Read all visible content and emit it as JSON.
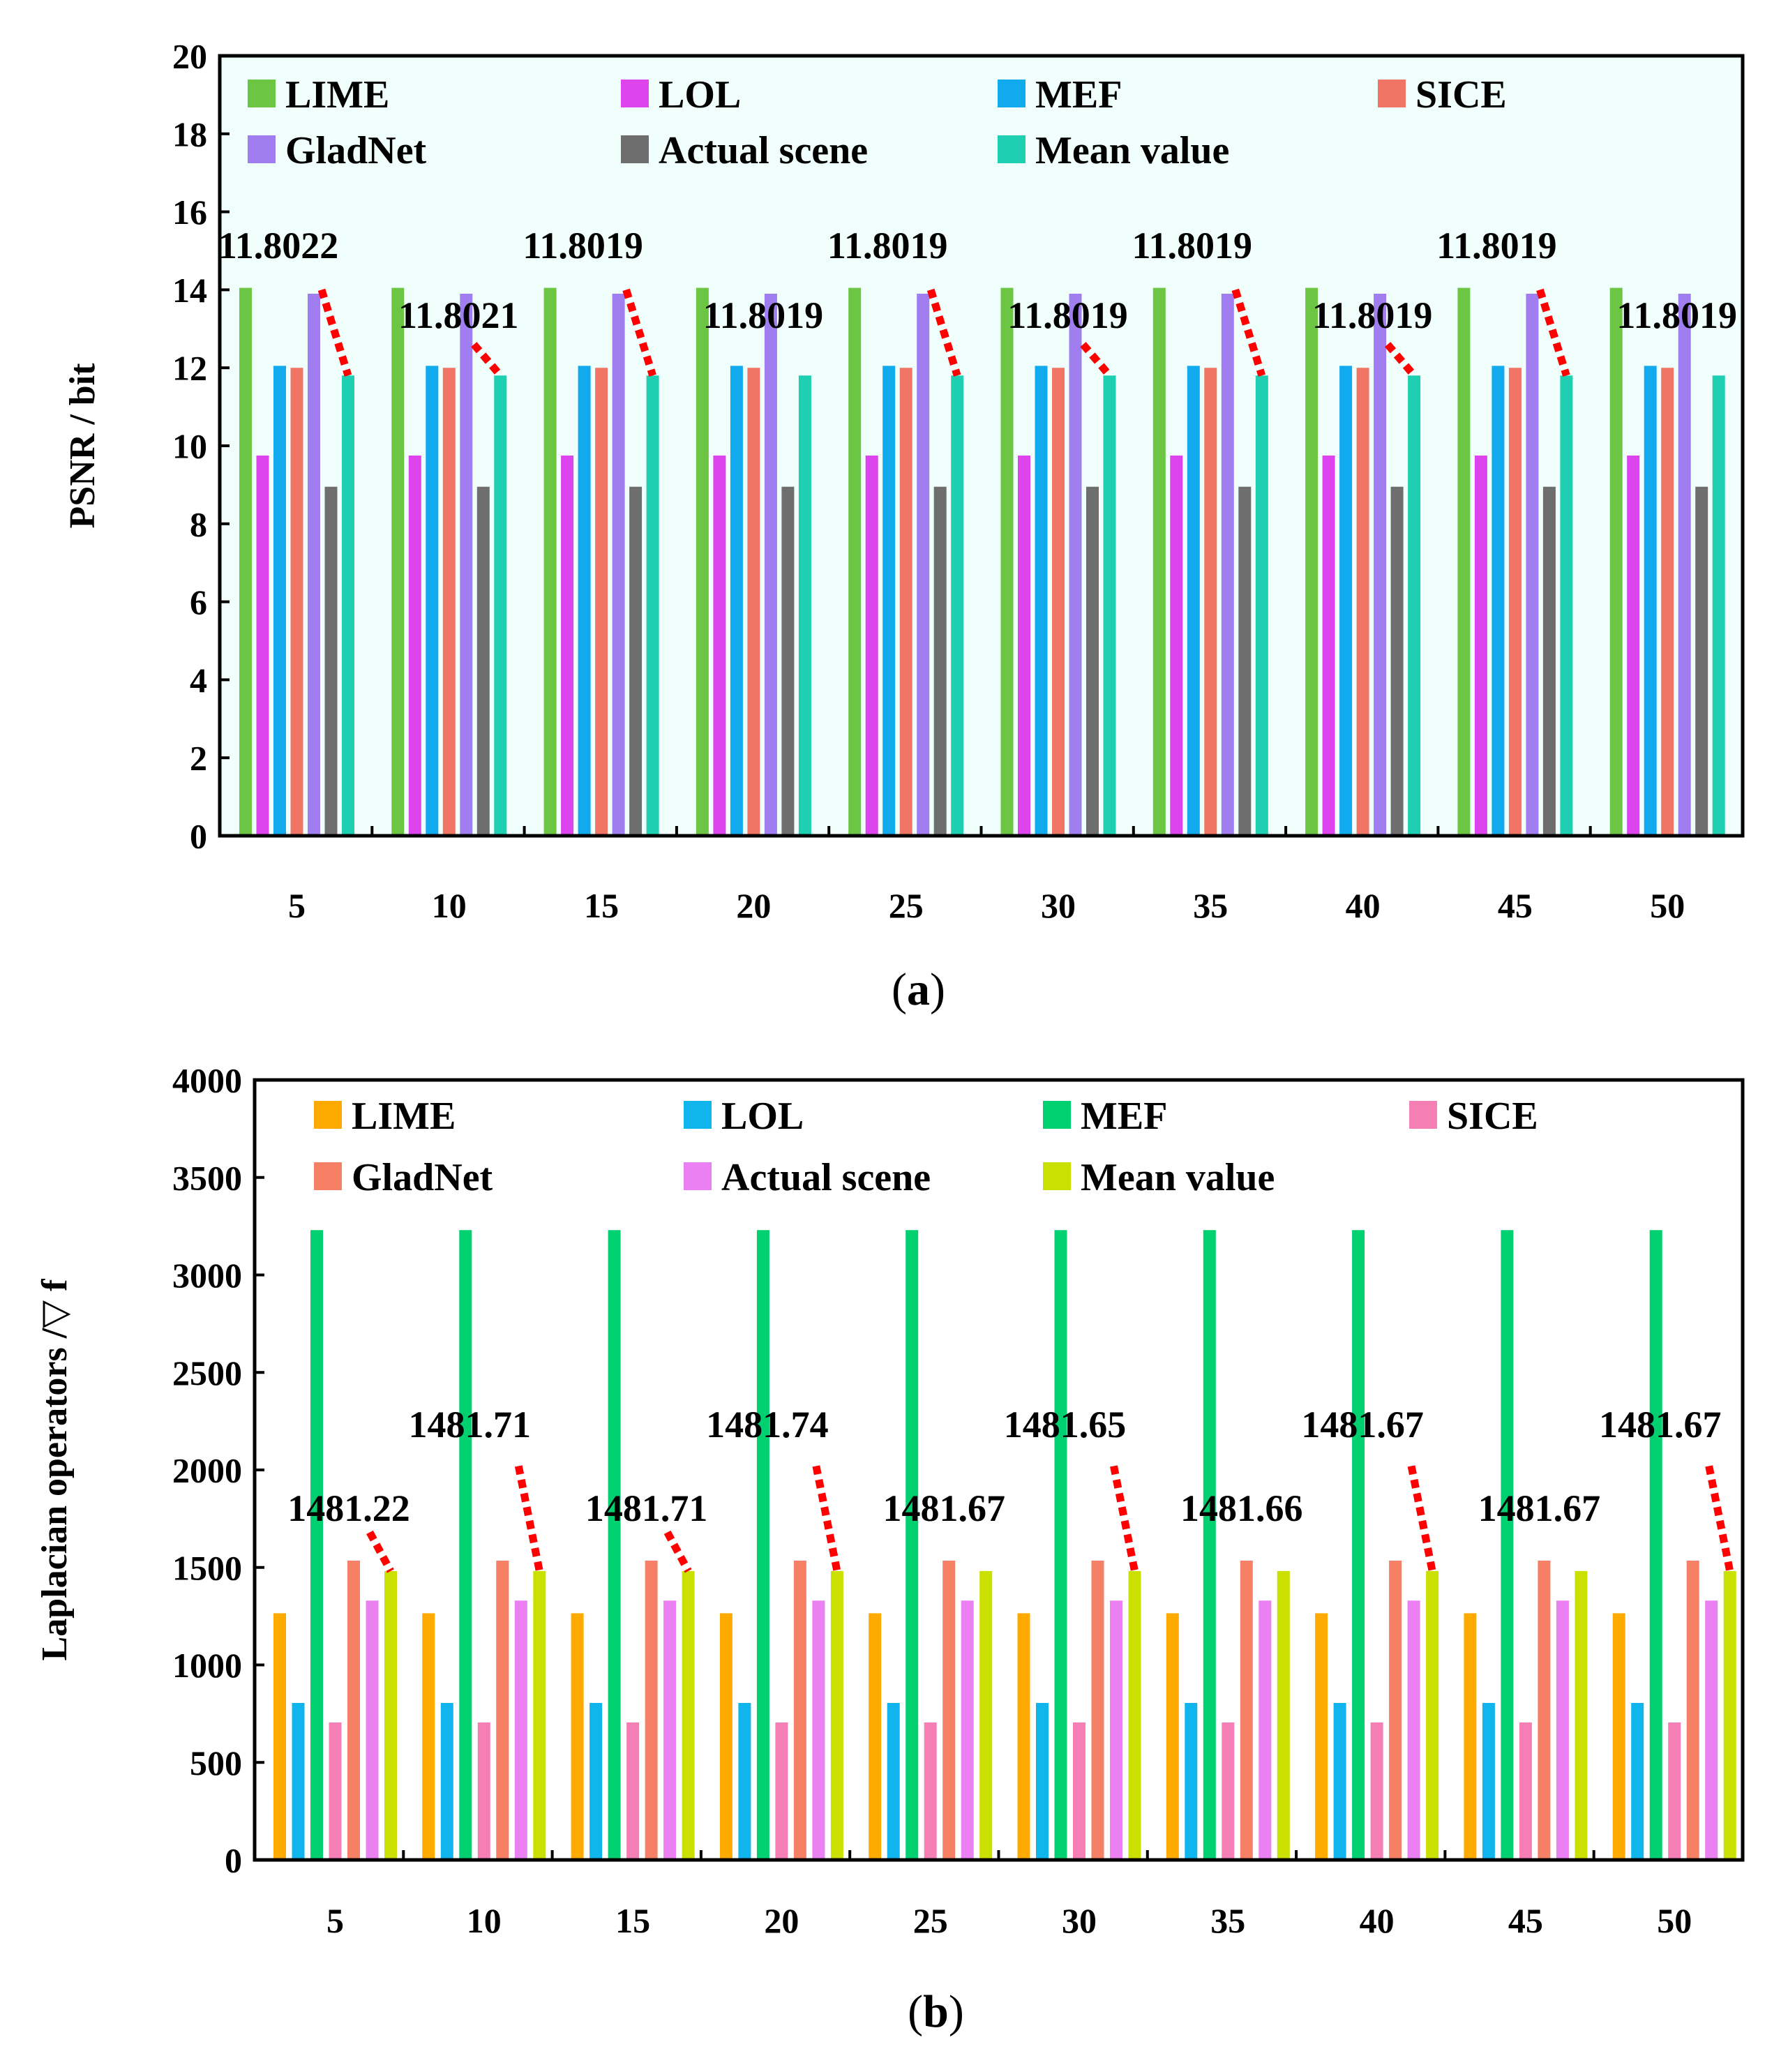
{
  "chart_data": [
    {
      "type": "bar",
      "panel_label": "(a)",
      "panel_label_parts": [
        "(",
        "a",
        ")"
      ],
      "ylabel": "PSNR / bit",
      "xlabel": "",
      "ylim": [
        0,
        20
      ],
      "yticks": [
        "0",
        "2",
        "4",
        "6",
        "8",
        "10",
        "12",
        "14",
        "16",
        "18",
        "20"
      ],
      "categories": [
        "5",
        "10",
        "15",
        "20",
        "25",
        "30",
        "35",
        "40",
        "45",
        "50"
      ],
      "grid": false,
      "legend_position": "top",
      "plot_background": "#f0fffc",
      "series": [
        {
          "name": "LIME",
          "color": "#6cc644",
          "values": [
            14.05,
            14.05,
            14.05,
            14.05,
            14.05,
            14.05,
            14.05,
            14.05,
            14.05,
            14.05
          ]
        },
        {
          "name": "LOL",
          "color": "#dd44ee",
          "values": [
            9.75,
            9.75,
            9.75,
            9.75,
            9.75,
            9.75,
            9.75,
            9.75,
            9.75,
            9.75
          ]
        },
        {
          "name": "MEF",
          "color": "#11aaee",
          "values": [
            12.05,
            12.05,
            12.05,
            12.05,
            12.05,
            12.05,
            12.05,
            12.05,
            12.05,
            12.05
          ]
        },
        {
          "name": "SICE",
          "color": "#f07565",
          "values": [
            12.0,
            12.0,
            12.0,
            12.0,
            12.0,
            12.0,
            12.0,
            12.0,
            12.0,
            12.0
          ]
        },
        {
          "name": "GladNet",
          "color": "#a07ef0",
          "values": [
            13.9,
            13.9,
            13.9,
            13.9,
            13.9,
            13.9,
            13.9,
            13.9,
            13.9,
            13.9
          ]
        },
        {
          "name": "Actual scene",
          "color": "#6e6e6e",
          "values": [
            8.95,
            8.95,
            8.95,
            8.95,
            8.95,
            8.95,
            8.95,
            8.95,
            8.95,
            8.95
          ]
        },
        {
          "name": "Mean value",
          "color": "#1fcfb2",
          "values": [
            11.8022,
            11.8021,
            11.8019,
            11.8019,
            11.8019,
            11.8019,
            11.8019,
            11.8019,
            11.8019,
            11.8019
          ]
        }
      ],
      "annotations": [
        {
          "text": "11.8022",
          "level": "high",
          "leader_to": 14.0
        },
        {
          "text": "11.8021",
          "level": "low",
          "leader_to": 12.6
        },
        {
          "text": "11.8019",
          "level": "high",
          "leader_to": 14.0
        },
        {
          "text": "11.8019",
          "level": "low",
          "leader_to": null
        },
        {
          "text": "11.8019",
          "level": "high",
          "leader_to": 14.0
        },
        {
          "text": "11.8019",
          "level": "low",
          "leader_to": 12.6
        },
        {
          "text": "11.8019",
          "level": "high",
          "leader_to": 14.0
        },
        {
          "text": "11.8019",
          "level": "low",
          "leader_to": 12.6
        },
        {
          "text": "11.8019",
          "level": "high",
          "leader_to": 14.0
        },
        {
          "text": "11.8019",
          "level": "low",
          "leader_to": null
        }
      ],
      "leader_color": "#ff0000"
    },
    {
      "type": "bar",
      "panel_label": "(b)",
      "panel_label_parts": [
        "(",
        "b",
        ")"
      ],
      "ylabel": "Laplacian operators /▽ f",
      "xlabel": "",
      "ylim": [
        0,
        4000
      ],
      "yticks": [
        "0",
        "500",
        "1000",
        "1500",
        "2000",
        "2500",
        "3000",
        "3500",
        "4000"
      ],
      "categories": [
        "5",
        "10",
        "15",
        "20",
        "25",
        "30",
        "35",
        "40",
        "45",
        "50"
      ],
      "grid": false,
      "legend_position": "top",
      "plot_background": "#ffffff",
      "series": [
        {
          "name": "LIME",
          "color": "#ffaa00",
          "values": [
            1265,
            1265,
            1265,
            1265,
            1265,
            1265,
            1265,
            1265,
            1265,
            1265
          ]
        },
        {
          "name": "LOL",
          "color": "#11b5ee",
          "values": [
            805,
            805,
            805,
            805,
            805,
            805,
            805,
            805,
            805,
            805
          ]
        },
        {
          "name": "MEF",
          "color": "#00d070",
          "values": [
            3230,
            3230,
            3230,
            3230,
            3230,
            3230,
            3230,
            3230,
            3230,
            3230
          ]
        },
        {
          "name": "SICE",
          "color": "#f57fb5",
          "values": [
            705,
            705,
            705,
            705,
            705,
            705,
            705,
            705,
            705,
            705
          ]
        },
        {
          "name": "GladNet",
          "color": "#f58066",
          "values": [
            1535,
            1535,
            1535,
            1535,
            1535,
            1535,
            1535,
            1535,
            1535,
            1535
          ]
        },
        {
          "name": "Actual scene",
          "color": "#ea80f2",
          "values": [
            1330,
            1330,
            1330,
            1330,
            1330,
            1330,
            1330,
            1330,
            1330,
            1330
          ]
        },
        {
          "name": "Mean value",
          "color": "#c9e000",
          "values": [
            1481.22,
            1481.71,
            1481.71,
            1481.74,
            1481.67,
            1481.65,
            1481.66,
            1481.67,
            1481.67,
            1481.67
          ]
        }
      ],
      "annotations": [
        {
          "text": "1481.22",
          "level": "low",
          "leader_to": 1680
        },
        {
          "text": "1481.71",
          "level": "high",
          "leader_to": 2020
        },
        {
          "text": "1481.71",
          "level": "low",
          "leader_to": 1680
        },
        {
          "text": "1481.74",
          "level": "high",
          "leader_to": 2020
        },
        {
          "text": "1481.67",
          "level": "low",
          "leader_to": null
        },
        {
          "text": "1481.65",
          "level": "high",
          "leader_to": 2020
        },
        {
          "text": "1481.66",
          "level": "low",
          "leader_to": null
        },
        {
          "text": "1481.67",
          "level": "high",
          "leader_to": 2020
        },
        {
          "text": "1481.67",
          "level": "low",
          "leader_to": null
        },
        {
          "text": "1481.67",
          "level": "high",
          "leader_to": 2020
        }
      ],
      "leader_color": "#ff0000"
    }
  ]
}
